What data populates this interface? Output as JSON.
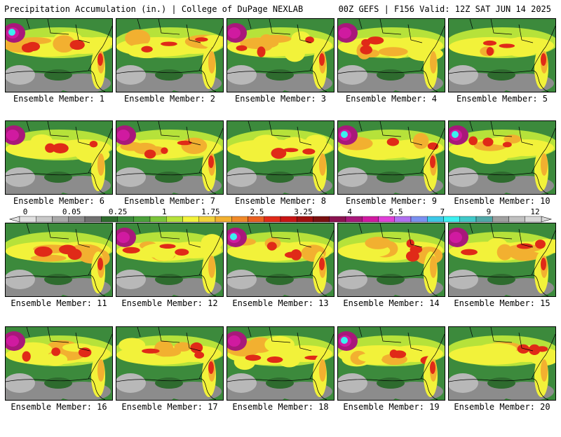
{
  "header": {
    "left": "Precipitation Accumulation (in.) | College of DuPage NEXLAB",
    "right": "00Z GEFS | F156 Valid: 12Z SAT JUN 14 2025"
  },
  "panels": [
    {
      "label": "Ensemble Member: 1"
    },
    {
      "label": "Ensemble Member: 2"
    },
    {
      "label": "Ensemble Member: 3"
    },
    {
      "label": "Ensemble Member: 4"
    },
    {
      "label": "Ensemble Member: 5"
    },
    {
      "label": "Ensemble Member: 6"
    },
    {
      "label": "Ensemble Member: 7"
    },
    {
      "label": "Ensemble Member: 8"
    },
    {
      "label": "Ensemble Member: 9"
    },
    {
      "label": "Ensemble Member: 10"
    },
    {
      "label": "Ensemble Member: 11"
    },
    {
      "label": "Ensemble Member: 12"
    },
    {
      "label": "Ensemble Member: 13"
    },
    {
      "label": "Ensemble Member: 14"
    },
    {
      "label": "Ensemble Member: 15"
    },
    {
      "label": "Ensemble Member: 16"
    },
    {
      "label": "Ensemble Member: 17"
    },
    {
      "label": "Ensemble Member: 18"
    },
    {
      "label": "Ensemble Member: 19"
    },
    {
      "label": "Ensemble Member: 20"
    }
  ],
  "colorbar": {
    "tick_labels": [
      "0",
      "0.05",
      "0.25",
      "1",
      "1.75",
      "2.5",
      "3.25",
      "4",
      "5.5",
      "7",
      "9",
      "12"
    ],
    "colors": [
      "#e0e0e0",
      "#c8c8c8",
      "#a8a8a8",
      "#8c8c8c",
      "#707070",
      "#2e6b2e",
      "#3c8a3c",
      "#4aa03a",
      "#7ac43a",
      "#b6e23a",
      "#f2f23a",
      "#f2d23a",
      "#f2b030",
      "#f08a28",
      "#ea6020",
      "#e02a18",
      "#c81414",
      "#a01010",
      "#7a1010",
      "#8a1250",
      "#a8187a",
      "#d01aa0",
      "#e040d8",
      "#b070f0",
      "#7a90f0",
      "#3cc8e8",
      "#3cf0f0",
      "#40c8c8",
      "#50a8a8",
      "#a0a0a0",
      "#c0c0c0",
      "#d8d8d8"
    ]
  }
}
